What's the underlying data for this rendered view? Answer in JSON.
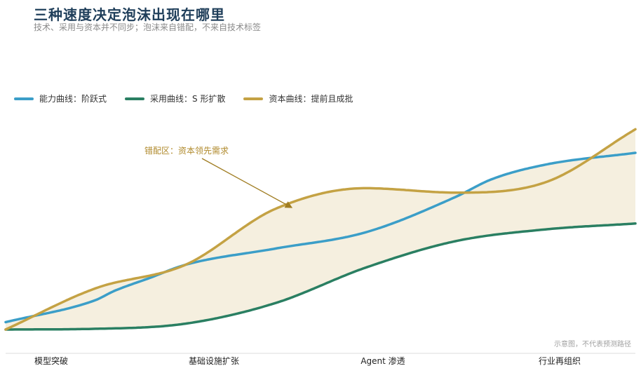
{
  "header": {
    "title": "三种速度决定泡沫出现在哪里",
    "subtitle": "技术、采用与资本并不同步；泡沫来自错配，不来自技术标签"
  },
  "legend": [
    {
      "label": "能力曲线：阶跃式",
      "color": "#3b9ec8"
    },
    {
      "label": "采用曲线：S 形扩散",
      "color": "#2a7f62"
    },
    {
      "label": "资本曲线：提前且成批",
      "color": "#c4a244"
    }
  ],
  "note": "示意图，不代表预测路径",
  "chart_data": {
    "type": "line",
    "categories": [
      "模型突破",
      "基础设施扩张",
      "Agent 渗透",
      "行业再组织"
    ],
    "annotation": "错配区：资本领先需求",
    "shaded_region": "between adoption and max(capability, capital)",
    "fill_color": "#f5efdf",
    "series": [
      {
        "name": "能力曲线：阶跃式",
        "color": "#3b9ec8",
        "x": [
          0,
          0.5,
          0.6,
          0.8,
          1.0,
          1.5,
          2.0,
          2.5,
          2.7,
          3.0,
          3.5
        ],
        "y": [
          0.05,
          0.2,
          0.26,
          0.35,
          0.44,
          0.55,
          0.66,
          0.9,
          1.02,
          1.12,
          1.2
        ]
      },
      {
        "name": "采用曲线：S 形扩散",
        "color": "#2a7f62",
        "x": [
          0,
          0.5,
          1.0,
          1.5,
          2.0,
          2.5,
          3.0,
          3.5
        ],
        "y": [
          0.0,
          0.005,
          0.04,
          0.18,
          0.42,
          0.6,
          0.68,
          0.72
        ]
      },
      {
        "name": "资本曲线：提前且成批",
        "color": "#c4a244",
        "x": [
          0,
          0.5,
          1.0,
          1.5,
          2.0,
          2.5,
          3.0,
          3.5
        ],
        "y": [
          0.0,
          0.28,
          0.44,
          0.82,
          0.96,
          0.93,
          1.0,
          1.36
        ]
      }
    ]
  }
}
